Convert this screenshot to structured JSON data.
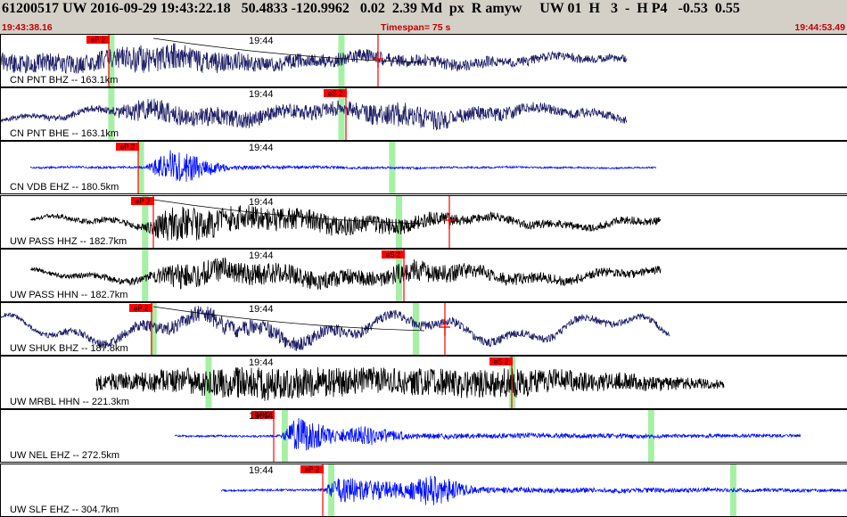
{
  "header": {
    "line": "61200517 UW 2016-09-29 19:43:22.18   50.4833 -120.9962   0.02  2.39 Md  px  R amyw     UW 01  H   3  -  H P4   -0.53  0.55",
    "start_time": "19:43:38.16",
    "timespan": "Timespan=  75 s",
    "end_time": "19:44:53.49"
  },
  "colors": {
    "header_bg": "#d4d0c8",
    "time_red": "#c00000",
    "pick_red": "#ff0000",
    "window_green": "#a6f0a6",
    "trace_navy": "#202068",
    "trace_blue": "#0010ff",
    "trace_black": "#000000"
  },
  "traces": [
    {
      "label": "CN PNT BHZ -- 163.1km",
      "minute": "19:44",
      "color": "#202068",
      "start": 0.0,
      "end": 0.74,
      "env": [
        [
          0.13,
          2.5
        ],
        [
          0.17,
          4
        ],
        [
          0.24,
          3
        ],
        [
          0.32,
          2
        ],
        [
          0.45,
          1.8
        ],
        [
          0.74,
          1
        ]
      ],
      "long": 1,
      "drift": true,
      "green": [
        0.13,
        0.402
      ],
      "picks": [
        {
          "label": "eP 2",
          "x": 0.128
        },
        {
          "label": "",
          "x": 0.446
        }
      ],
      "crosses": [
        0.446
      ]
    },
    {
      "label": "CN PNT BHE -- 163.1km",
      "minute": "19:44",
      "color": "#202068",
      "start": 0.0,
      "end": 0.74,
      "env": [
        [
          0.0,
          0.6
        ],
        [
          0.13,
          1
        ],
        [
          0.16,
          3
        ],
        [
          0.33,
          2
        ],
        [
          0.41,
          2
        ],
        [
          0.46,
          3.5
        ],
        [
          0.55,
          2
        ],
        [
          0.74,
          1
        ]
      ],
      "long": 1.3,
      "drift": false,
      "green": [
        0.13,
        0.402
      ],
      "picks": [
        {
          "label": "eS 2",
          "x": 0.408
        }
      ],
      "crosses": []
    },
    {
      "label": "CN VDB EHZ -- 180.5km",
      "minute": "19:44",
      "color": "#0010ff",
      "start": 0.035,
      "end": 0.775,
      "env": [
        [
          0.035,
          0.25
        ],
        [
          0.17,
          0.3
        ],
        [
          0.2,
          5
        ],
        [
          0.27,
          0.6
        ],
        [
          0.4,
          0.3
        ],
        [
          0.775,
          0.2
        ]
      ],
      "long": 0.1,
      "drift": false,
      "green": [
        0.165,
        0.462
      ],
      "picks": [
        {
          "label": "eP 2",
          "x": 0.162
        }
      ],
      "crosses": []
    },
    {
      "label": "UW PASS HHZ -- 182.7km",
      "minute": "19:44",
      "color": "#000000",
      "start": 0.035,
      "end": 0.78,
      "env": [
        [
          0.035,
          0.5
        ],
        [
          0.17,
          1
        ],
        [
          0.2,
          5
        ],
        [
          0.26,
          3.5
        ],
        [
          0.5,
          2
        ],
        [
          0.56,
          1.2
        ],
        [
          0.78,
          1
        ]
      ],
      "long": 1.2,
      "drift": true,
      "green": [
        0.17,
        0.47
      ],
      "picks": [
        {
          "label": "eP 2",
          "x": 0.18
        },
        {
          "label": "",
          "x": 0.53
        }
      ],
      "crosses": [
        0.53
      ]
    },
    {
      "label": "UW PASS HHN -- 182.7km",
      "minute": "19:44",
      "color": "#000000",
      "start": 0.035,
      "end": 0.78,
      "env": [
        [
          0.035,
          0.5
        ],
        [
          0.17,
          1
        ],
        [
          0.21,
          3.5
        ],
        [
          0.44,
          2
        ],
        [
          0.48,
          3
        ],
        [
          0.62,
          1.5
        ],
        [
          0.78,
          1
        ]
      ],
      "long": 1.2,
      "drift": false,
      "green": [
        0.17,
        0.47
      ],
      "picks": [
        {
          "label": "eS 2",
          "x": 0.476
        }
      ],
      "crosses": []
    },
    {
      "label": "UW SHUK BHZ -- 187.8km",
      "minute": "19:44",
      "color": "#202068",
      "start": 0.0,
      "end": 0.79,
      "env": [
        [
          0.0,
          0.5
        ],
        [
          0.18,
          1.5
        ],
        [
          0.25,
          2.5
        ],
        [
          0.45,
          1.3
        ],
        [
          0.79,
          0.8
        ]
      ],
      "long": 3,
      "drift": true,
      "green": [
        0.18,
        0.49
      ],
      "picks": [
        {
          "label": "eP 2",
          "x": 0.178
        },
        {
          "label": "",
          "x": 0.525
        }
      ],
      "crosses": [
        0.525
      ]
    },
    {
      "label": "UW MRBL HHN -- 221.3km",
      "minute": "19:44",
      "color": "#000000",
      "start": 0.113,
      "end": 0.855,
      "env": [
        [
          0.113,
          2
        ],
        [
          0.3,
          4.5
        ],
        [
          0.45,
          3.5
        ],
        [
          0.6,
          4
        ],
        [
          0.66,
          3
        ],
        [
          0.855,
          1.2
        ]
      ],
      "long": 0.5,
      "drift": false,
      "green": [
        0.245,
        0.604
      ],
      "picks": [
        {
          "label": "eS 2",
          "x": 0.604
        }
      ],
      "crosses": []
    },
    {
      "label": "UW NEL EHZ -- 272.5km",
      "minute": "19:44",
      "color": "#0010ff",
      "start": 0.205,
      "end": 0.945,
      "env": [
        [
          0.205,
          0.25
        ],
        [
          0.33,
          0.3
        ],
        [
          0.35,
          5
        ],
        [
          0.4,
          1.5
        ],
        [
          0.43,
          2.8
        ],
        [
          0.48,
          0.8
        ],
        [
          0.945,
          0.4
        ]
      ],
      "long": 0.1,
      "drift": false,
      "green": [
        0.335,
        0.768
      ],
      "picks": [
        {
          "label": "eP 2",
          "x": 0.322
        }
      ],
      "crosses": []
    },
    {
      "label": "UW SLF EHZ -- 304.7km",
      "minute": "19:44",
      "color": "#0010ff",
      "start": 0.26,
      "end": 1.0,
      "env": [
        [
          0.26,
          0.25
        ],
        [
          0.38,
          0.3
        ],
        [
          0.4,
          3.5
        ],
        [
          0.48,
          2
        ],
        [
          0.51,
          4.5
        ],
        [
          0.56,
          0.8
        ],
        [
          1.0,
          0.4
        ]
      ],
      "long": 0.1,
      "drift": false,
      "green": [
        0.39,
        0.865
      ],
      "picks": [
        {
          "label": "eP 2",
          "x": 0.38
        }
      ],
      "crosses": []
    }
  ]
}
